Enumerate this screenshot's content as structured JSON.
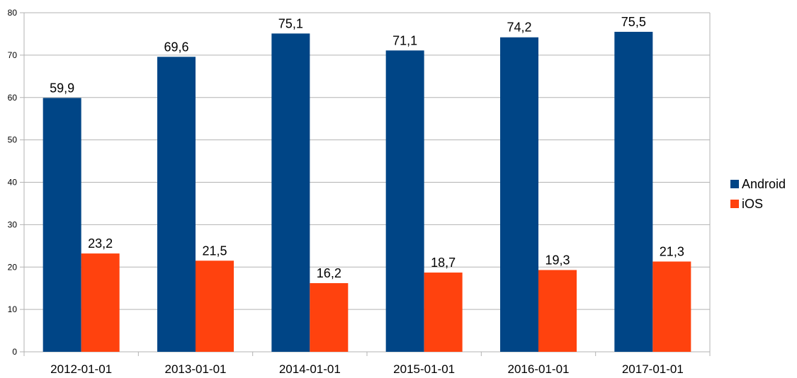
{
  "chart_data": {
    "type": "bar",
    "title": "",
    "xlabel": "",
    "ylabel": "",
    "ylim": [
      0,
      80
    ],
    "yticks": [
      0,
      10,
      20,
      30,
      40,
      50,
      60,
      70,
      80
    ],
    "categories": [
      "2012-01-01",
      "2013-01-01",
      "2014-01-01",
      "2015-01-01",
      "2016-01-01",
      "2017-01-01"
    ],
    "series": [
      {
        "name": "Android",
        "color": "#004586",
        "values": [
          59.9,
          69.6,
          75.1,
          71.1,
          74.2,
          75.5
        ],
        "labels": [
          "59,9",
          "69,6",
          "75,1",
          "71,1",
          "74,2",
          "75,5"
        ]
      },
      {
        "name": "iOS",
        "color": "#ff420e",
        "values": [
          23.2,
          21.5,
          16.2,
          18.7,
          19.3,
          21.3
        ],
        "labels": [
          "23,2",
          "21,5",
          "16,2",
          "18,7",
          "19,3",
          "21,3"
        ]
      }
    ],
    "grid": true,
    "legend_position": "right"
  }
}
